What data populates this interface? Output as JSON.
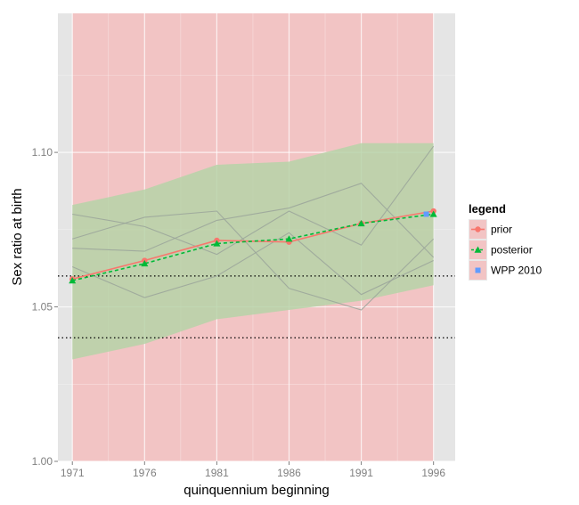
{
  "chart_data": {
    "type": "line",
    "title": "",
    "xlabel": "quinquennium beginning",
    "ylabel": "Sex ratio at birth",
    "x_ticks": [
      "1971",
      "1976",
      "1981",
      "1986",
      "1991",
      "1996"
    ],
    "y_ticks": [
      "1.00",
      "1.05",
      "1.10"
    ],
    "xlim": [
      1970,
      1997.5
    ],
    "ylim": [
      1.0,
      1.145
    ],
    "grid": true,
    "legend": {
      "title": "legend",
      "position": "right",
      "entries": [
        "prior",
        "posterior",
        "WPP 2010"
      ]
    },
    "background_regions": [
      {
        "name": "prior region",
        "x_range": [
          1971,
          1996
        ],
        "y_range": [
          1.0,
          1.145
        ],
        "color": "#f2c4c4"
      }
    ],
    "bands": [
      {
        "name": "posterior interval",
        "color": "#b6d4a8",
        "x": [
          1971,
          1976,
          1981,
          1986,
          1991,
          1996
        ],
        "lower": [
          1.033,
          1.038,
          1.046,
          1.049,
          1.052,
          1.057
        ],
        "upper": [
          1.083,
          1.088,
          1.096,
          1.097,
          1.103,
          1.103
        ]
      }
    ],
    "reference_lines": [
      1.04,
      1.06
    ],
    "background_trajectories": [
      {
        "x": [
          1971,
          1976,
          1981,
          1986,
          1991,
          1996
        ],
        "y": [
          1.08,
          1.076,
          1.067,
          1.081,
          1.07,
          1.102
        ]
      },
      {
        "x": [
          1971,
          1976,
          1981,
          1986,
          1991,
          1996
        ],
        "y": [
          1.072,
          1.079,
          1.081,
          1.056,
          1.049,
          1.072
        ]
      },
      {
        "x": [
          1971,
          1976,
          1981,
          1986,
          1991,
          1996
        ],
        "y": [
          1.069,
          1.068,
          1.078,
          1.082,
          1.09,
          1.066
        ]
      },
      {
        "x": [
          1971,
          1976,
          1981,
          1986,
          1991,
          1996
        ],
        "y": [
          1.063,
          1.053,
          1.06,
          1.074,
          1.054,
          1.065
        ]
      }
    ],
    "series": [
      {
        "name": "prior",
        "color": "#f8766d",
        "marker": "circle",
        "dash": "solid",
        "x": [
          1971,
          1976,
          1981,
          1986,
          1991,
          1996
        ],
        "y": [
          1.059,
          1.065,
          1.0715,
          1.071,
          1.077,
          1.081
        ]
      },
      {
        "name": "posterior",
        "color": "#00ba38",
        "marker": "triangle",
        "dash": "dashed",
        "x": [
          1971,
          1976,
          1981,
          1986,
          1991,
          1996
        ],
        "y": [
          1.0585,
          1.064,
          1.0705,
          1.072,
          1.077,
          1.08
        ]
      },
      {
        "name": "WPP 2010",
        "color": "#619cff",
        "marker": "square",
        "dash": "none",
        "x": [
          1995.5
        ],
        "y": [
          1.08
        ]
      }
    ]
  }
}
